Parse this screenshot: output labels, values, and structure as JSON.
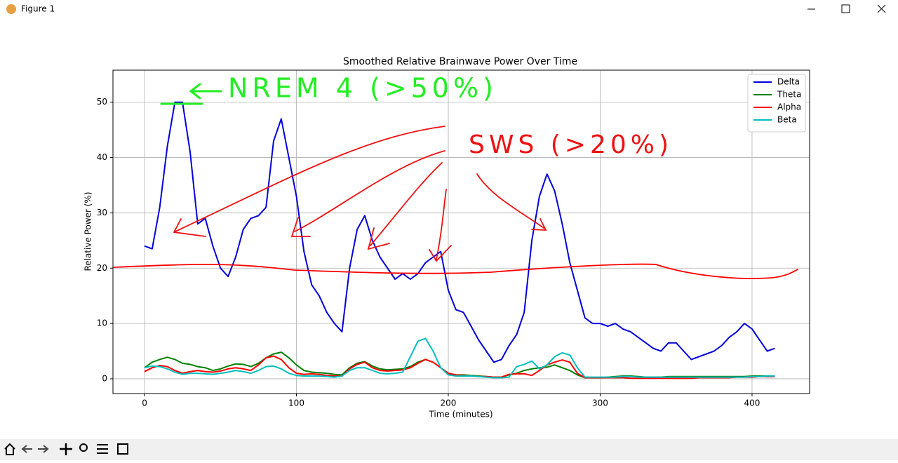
{
  "window": {
    "title": "Figure 1"
  },
  "chart_data": {
    "type": "line",
    "title": "Smoothed Relative Brainwave Power Over Time",
    "x_label": "Time (minutes)",
    "y_label": "Relative Power (%)",
    "annotations": [
      "NREM 4 (>50%)",
      "SWS (>20%)"
    ],
    "xlim": [
      -20.8,
      437.9
    ],
    "ylim": [
      -2.67,
      55.8
    ],
    "xticks": [
      0,
      100,
      200,
      300,
      400
    ],
    "yticks": [
      0,
      10,
      20,
      30,
      40,
      50
    ],
    "grid": true,
    "legend": "upper right",
    "x": [
      0,
      5,
      10,
      15,
      20,
      25,
      30,
      35,
      40,
      45,
      50,
      55,
      60,
      65,
      70,
      75,
      80,
      85,
      90,
      95,
      100,
      105,
      110,
      115,
      120,
      125,
      130,
      135,
      140,
      145,
      150,
      155,
      160,
      165,
      170,
      175,
      180,
      185,
      190,
      195,
      200,
      205,
      210,
      215,
      220,
      225,
      230,
      235,
      240,
      245,
      250,
      255,
      260,
      265,
      270,
      275,
      280,
      285,
      290,
      295,
      300,
      305,
      310,
      315,
      320,
      325,
      330,
      335,
      340,
      345,
      350,
      355,
      360,
      365,
      370,
      375,
      380,
      385,
      390,
      395,
      400,
      405,
      410,
      415
    ],
    "series": [
      {
        "name": "Delta",
        "color": "#0000dd",
        "values": [
          24,
          23.5,
          31,
          42,
          50,
          50,
          41,
          28,
          29,
          24,
          20,
          18.5,
          22,
          27,
          29,
          29.5,
          31,
          43,
          47,
          40,
          33,
          23,
          17,
          15,
          12,
          10,
          8.5,
          20,
          27,
          29.5,
          25,
          22,
          20,
          18,
          19,
          18,
          19,
          21,
          22,
          23,
          16,
          12.5,
          12,
          9.5,
          7,
          5,
          3,
          3.5,
          6,
          8,
          12,
          25,
          33,
          37,
          34,
          28,
          21,
          16,
          11,
          10,
          10,
          9.5,
          10,
          9,
          8.5,
          7.5,
          6.5,
          5.5,
          5,
          6.5,
          6.5,
          5,
          3.5,
          4,
          4.5,
          5,
          6,
          7.5,
          8.5,
          10,
          9,
          7,
          5,
          5.5
        ]
      },
      {
        "name": "Theta",
        "color": "#008000",
        "values": [
          2,
          3,
          3.5,
          3.9,
          3.5,
          2.8,
          2.6,
          2.2,
          2,
          1.5,
          1.8,
          2.3,
          2.7,
          2.6,
          2.2,
          2.8,
          3.8,
          4.5,
          4.8,
          3.8,
          2.5,
          1.5,
          1.2,
          1.1,
          1,
          0.8,
          0.7,
          2,
          2.8,
          3.1,
          2.3,
          1.8,
          1.6,
          1.7,
          1.8,
          2.2,
          3,
          3.5,
          3,
          2,
          1,
          0.7,
          0.7,
          0.6,
          0.5,
          0.4,
          0.3,
          0.3,
          0.7,
          1,
          1.5,
          1.8,
          2,
          2.1,
          2.5,
          2,
          1.5,
          0.7,
          0.2,
          0.2,
          0.2,
          0.3,
          0.4,
          0.5,
          0.5,
          0.4,
          0.3,
          0.3,
          0.3,
          0.4,
          0.4,
          0.4,
          0.4,
          0.4,
          0.4,
          0.4,
          0.4,
          0.4,
          0.4,
          0.4,
          0.5,
          0.5,
          0.5,
          0.5
        ]
      },
      {
        "name": "Alpha",
        "color": "#ff0000",
        "values": [
          1.3,
          2,
          2.4,
          2.2,
          1.5,
          1,
          1.3,
          1.5,
          1.3,
          1.2,
          1.4,
          1.8,
          2,
          1.8,
          1.5,
          2.5,
          3.8,
          4.1,
          3.5,
          2,
          1,
          0.8,
          0.9,
          0.8,
          0.6,
          0.5,
          0.5,
          1.8,
          2.6,
          3,
          2,
          1.5,
          1.4,
          1.5,
          1.6,
          2,
          2.8,
          3.5,
          3,
          2,
          1,
          0.7,
          0.6,
          0.5,
          0.4,
          0.4,
          0.3,
          0.3,
          0.8,
          0.9,
          0.9,
          0.6,
          1.5,
          2.5,
          3,
          3.4,
          3,
          1,
          0.2,
          0.2,
          0.2,
          0.2,
          0.2,
          0.2,
          0.1,
          0.1,
          0.1,
          0.1,
          0.1,
          0.1,
          0.1,
          0.1,
          0.1,
          0.2,
          0.2,
          0.2,
          0.2,
          0.2,
          0.3,
          0.3,
          0.3,
          0.4,
          0.4,
          0.4
        ]
      },
      {
        "name": "Beta",
        "color": "#00bfbf",
        "values": [
          2,
          2.3,
          2.2,
          1.8,
          1.2,
          0.8,
          1,
          1,
          0.9,
          0.8,
          1,
          1.2,
          1.5,
          1.3,
          1,
          1.5,
          2.2,
          2.3,
          1.8,
          1,
          0.6,
          0.5,
          0.5,
          0.5,
          0.4,
          0.3,
          0.5,
          1.5,
          2,
          2,
          1.5,
          1,
          0.9,
          1,
          1.2,
          4,
          6.8,
          7.3,
          5,
          2,
          0.7,
          0.5,
          0.5,
          0.5,
          0.4,
          0.3,
          0.2,
          0.2,
          0.3,
          2.2,
          2.6,
          3.2,
          1.8,
          2.5,
          4,
          4.7,
          4.3,
          2,
          0.3,
          0.3,
          0.3,
          0.3,
          0.3,
          0.4,
          0.4,
          0.3,
          0.3,
          0.3,
          0.3,
          0.3,
          0.3,
          0.3,
          0.3,
          0.3,
          0.3,
          0.3,
          0.3,
          0.3,
          0.3,
          0.3,
          0.4,
          0.4,
          0.5,
          0.5
        ]
      }
    ]
  }
}
